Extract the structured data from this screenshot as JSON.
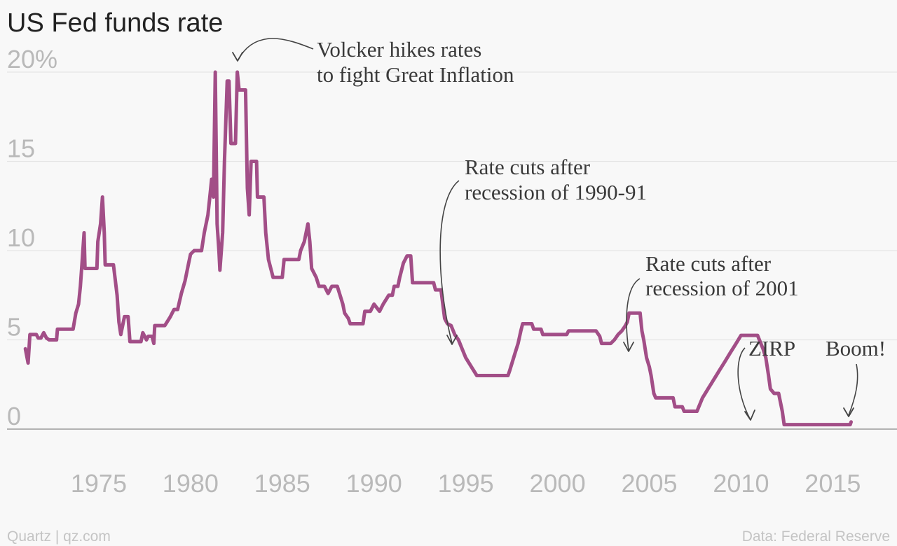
{
  "chart_data": {
    "type": "line",
    "title": "US Fed funds rate",
    "xlabel": "",
    "ylabel": "",
    "xlim": [
      1970,
      2018.5
    ],
    "ylim": [
      0,
      20
    ],
    "y_ticks": [
      {
        "value": 0,
        "label": "0"
      },
      {
        "value": 5,
        "label": "5"
      },
      {
        "value": 10,
        "label": "10"
      },
      {
        "value": 15,
        "label": "15"
      },
      {
        "value": 20,
        "label": "20%"
      }
    ],
    "x_ticks": [
      {
        "value": 1975,
        "label": "1975"
      },
      {
        "value": 1980,
        "label": "1980"
      },
      {
        "value": 1985,
        "label": "1985"
      },
      {
        "value": 1990,
        "label": "1990"
      },
      {
        "value": 1995,
        "label": "1995"
      },
      {
        "value": 2000,
        "label": "2000"
      },
      {
        "value": 2005,
        "label": "2005"
      },
      {
        "value": 2010,
        "label": "2010"
      },
      {
        "value": 2015,
        "label": "2015"
      }
    ],
    "grid": true,
    "line_color": "#a24e87",
    "series": [
      {
        "points": [
          [
            1971.0,
            4.5
          ],
          [
            1971.15,
            3.7
          ],
          [
            1971.25,
            5.3
          ],
          [
            1971.6,
            5.3
          ],
          [
            1971.7,
            5.1
          ],
          [
            1971.85,
            5.1
          ],
          [
            1972.0,
            5.4
          ],
          [
            1972.15,
            5.1
          ],
          [
            1972.3,
            5.0
          ],
          [
            1972.7,
            5.0
          ],
          [
            1972.75,
            5.6
          ],
          [
            1973.6,
            5.6
          ],
          [
            1973.75,
            6.5
          ],
          [
            1973.9,
            7.0
          ],
          [
            1974.0,
            8.0
          ],
          [
            1974.1,
            9.5
          ],
          [
            1974.2,
            11.0
          ],
          [
            1974.25,
            9.0
          ],
          [
            1974.9,
            9.0
          ],
          [
            1974.95,
            10.5
          ],
          [
            1975.1,
            11.5
          ],
          [
            1975.2,
            13.0
          ],
          [
            1975.3,
            11.0
          ],
          [
            1975.35,
            9.2
          ],
          [
            1975.8,
            9.2
          ],
          [
            1976.0,
            7.5
          ],
          [
            1976.1,
            6.0
          ],
          [
            1976.2,
            5.3
          ],
          [
            1976.4,
            6.3
          ],
          [
            1976.6,
            6.3
          ],
          [
            1976.7,
            4.9
          ],
          [
            1977.3,
            4.9
          ],
          [
            1977.4,
            5.4
          ],
          [
            1977.6,
            5.0
          ],
          [
            1977.7,
            5.2
          ],
          [
            1977.9,
            5.2
          ],
          [
            1978.0,
            4.8
          ],
          [
            1978.05,
            5.8
          ],
          [
            1978.6,
            5.8
          ],
          [
            1978.9,
            6.3
          ],
          [
            1979.1,
            6.7
          ],
          [
            1979.3,
            6.7
          ],
          [
            1979.5,
            7.6
          ],
          [
            1979.7,
            8.3
          ],
          [
            1979.9,
            9.3
          ],
          [
            1980.0,
            9.8
          ],
          [
            1980.2,
            10.0
          ],
          [
            1980.6,
            10.0
          ],
          [
            1980.75,
            11.0
          ],
          [
            1980.95,
            12.0
          ],
          [
            1981.05,
            13.0
          ],
          [
            1981.15,
            14.0
          ],
          [
            1981.25,
            13.0
          ],
          [
            1981.35,
            20.0
          ],
          [
            1981.45,
            11.5
          ],
          [
            1981.55,
            10.0
          ],
          [
            1981.6,
            8.9
          ],
          [
            1981.75,
            11.0
          ],
          [
            1981.85,
            15.0
          ],
          [
            1982.0,
            19.5
          ],
          [
            1982.1,
            19.5
          ],
          [
            1982.2,
            16.0
          ],
          [
            1982.45,
            16.0
          ],
          [
            1982.55,
            20.0
          ],
          [
            1982.65,
            19.0
          ],
          [
            1983.0,
            19.0
          ],
          [
            1983.1,
            13.5
          ],
          [
            1983.2,
            12.0
          ],
          [
            1983.3,
            15.0
          ],
          [
            1983.6,
            15.0
          ],
          [
            1983.65,
            13.0
          ],
          [
            1984.0,
            13.0
          ],
          [
            1984.1,
            11.0
          ],
          [
            1984.25,
            9.5
          ],
          [
            1984.5,
            8.5
          ],
          [
            1985.0,
            8.5
          ],
          [
            1985.1,
            9.5
          ],
          [
            1985.9,
            9.5
          ],
          [
            1986.0,
            10.0
          ],
          [
            1986.2,
            10.5
          ],
          [
            1986.4,
            11.5
          ],
          [
            1986.5,
            10.5
          ],
          [
            1986.6,
            9.0
          ],
          [
            1986.85,
            8.5
          ],
          [
            1987.0,
            8.0
          ],
          [
            1987.3,
            8.0
          ],
          [
            1987.5,
            7.6
          ],
          [
            1987.7,
            8.0
          ],
          [
            1988.0,
            8.0
          ],
          [
            1988.3,
            7.0
          ],
          [
            1988.4,
            6.5
          ],
          [
            1988.6,
            6.2
          ],
          [
            1988.7,
            5.9
          ],
          [
            1989.4,
            5.9
          ],
          [
            1989.5,
            6.6
          ],
          [
            1989.8,
            6.6
          ],
          [
            1990.0,
            7.0
          ],
          [
            1990.3,
            6.6
          ],
          [
            1990.5,
            7.0
          ],
          [
            1990.8,
            7.5
          ],
          [
            1991.0,
            7.5
          ],
          [
            1991.1,
            8.0
          ],
          [
            1991.3,
            8.0
          ],
          [
            1991.4,
            8.5
          ],
          [
            1991.6,
            9.3
          ],
          [
            1991.8,
            9.7
          ],
          [
            1992.0,
            9.7
          ],
          [
            1992.1,
            8.2
          ],
          [
            1993.25,
            8.2
          ],
          [
            1993.35,
            7.8
          ],
          [
            1993.65,
            7.8
          ],
          [
            1993.75,
            7.0
          ],
          [
            1993.85,
            6.2
          ],
          [
            1994.0,
            5.9
          ],
          [
            1994.2,
            5.8
          ],
          [
            1994.4,
            5.3
          ],
          [
            1994.6,
            5.0
          ],
          [
            1994.8,
            4.5
          ],
          [
            1995.0,
            4.0
          ],
          [
            1995.3,
            3.5
          ],
          [
            1995.6,
            3.0
          ],
          [
            1997.3,
            3.0
          ],
          [
            1997.4,
            3.3
          ],
          [
            1997.55,
            3.8
          ],
          [
            1997.7,
            4.3
          ],
          [
            1997.85,
            4.8
          ],
          [
            1998.0,
            5.5
          ],
          [
            1998.1,
            5.9
          ],
          [
            1998.6,
            5.9
          ],
          [
            1998.7,
            5.6
          ],
          [
            1999.1,
            5.6
          ],
          [
            1999.2,
            5.3
          ],
          [
            2000.5,
            5.3
          ],
          [
            2000.6,
            5.5
          ],
          [
            2002.1,
            5.5
          ],
          [
            2002.3,
            5.2
          ],
          [
            2002.4,
            4.8
          ],
          [
            2002.9,
            4.8
          ],
          [
            2003.1,
            5.0
          ],
          [
            2003.3,
            5.3
          ],
          [
            2003.5,
            5.5
          ],
          [
            2003.7,
            5.8
          ],
          [
            2003.8,
            6.0
          ],
          [
            2003.9,
            6.5
          ],
          [
            2004.5,
            6.5
          ],
          [
            2004.6,
            5.5
          ],
          [
            2004.7,
            5.0
          ],
          [
            2004.85,
            4.0
          ],
          [
            2005.0,
            3.5
          ],
          [
            2005.1,
            3.0
          ],
          [
            2005.25,
            2.0
          ],
          [
            2005.35,
            1.75
          ],
          [
            2006.3,
            1.75
          ],
          [
            2006.4,
            1.25
          ],
          [
            2006.8,
            1.25
          ],
          [
            2006.9,
            1.0
          ],
          [
            2007.6,
            1.0
          ],
          [
            2007.7,
            1.25
          ],
          [
            2007.8,
            1.5
          ],
          [
            2007.9,
            1.75
          ],
          [
            2008.05,
            2.0
          ],
          [
            2008.2,
            2.25
          ],
          [
            2008.35,
            2.5
          ],
          [
            2008.5,
            2.75
          ],
          [
            2008.65,
            3.0
          ],
          [
            2008.8,
            3.25
          ],
          [
            2008.95,
            3.5
          ],
          [
            2009.1,
            3.75
          ],
          [
            2009.25,
            4.0
          ],
          [
            2009.4,
            4.25
          ],
          [
            2009.55,
            4.5
          ],
          [
            2009.7,
            4.75
          ],
          [
            2009.85,
            5.0
          ],
          [
            2010.0,
            5.25
          ],
          [
            2010.9,
            5.25
          ],
          [
            2011.0,
            5.0
          ],
          [
            2011.2,
            4.5
          ],
          [
            2011.35,
            4.0
          ],
          [
            2011.5,
            3.0
          ],
          [
            2011.6,
            2.25
          ],
          [
            2011.8,
            2.0
          ],
          [
            2012.05,
            2.0
          ],
          [
            2012.15,
            1.5
          ],
          [
            2012.25,
            1.0
          ],
          [
            2012.35,
            0.25
          ],
          [
            2015.95,
            0.25
          ],
          [
            2016.0,
            0.4
          ]
        ]
      }
    ],
    "annotations": [
      {
        "lines": [
          "Volcker hikes rates",
          "to fight Great Inflation"
        ]
      },
      {
        "lines": [
          "Rate cuts after",
          "recession of 1990-91"
        ]
      },
      {
        "lines": [
          "Rate cuts after",
          "recession of 2001"
        ]
      },
      {
        "lines": [
          "ZIRP"
        ]
      },
      {
        "lines": [
          "Boom!"
        ]
      }
    ]
  },
  "footer": {
    "source_left": "Quartz | qz.com",
    "source_right": "Data: Federal Reserve"
  }
}
